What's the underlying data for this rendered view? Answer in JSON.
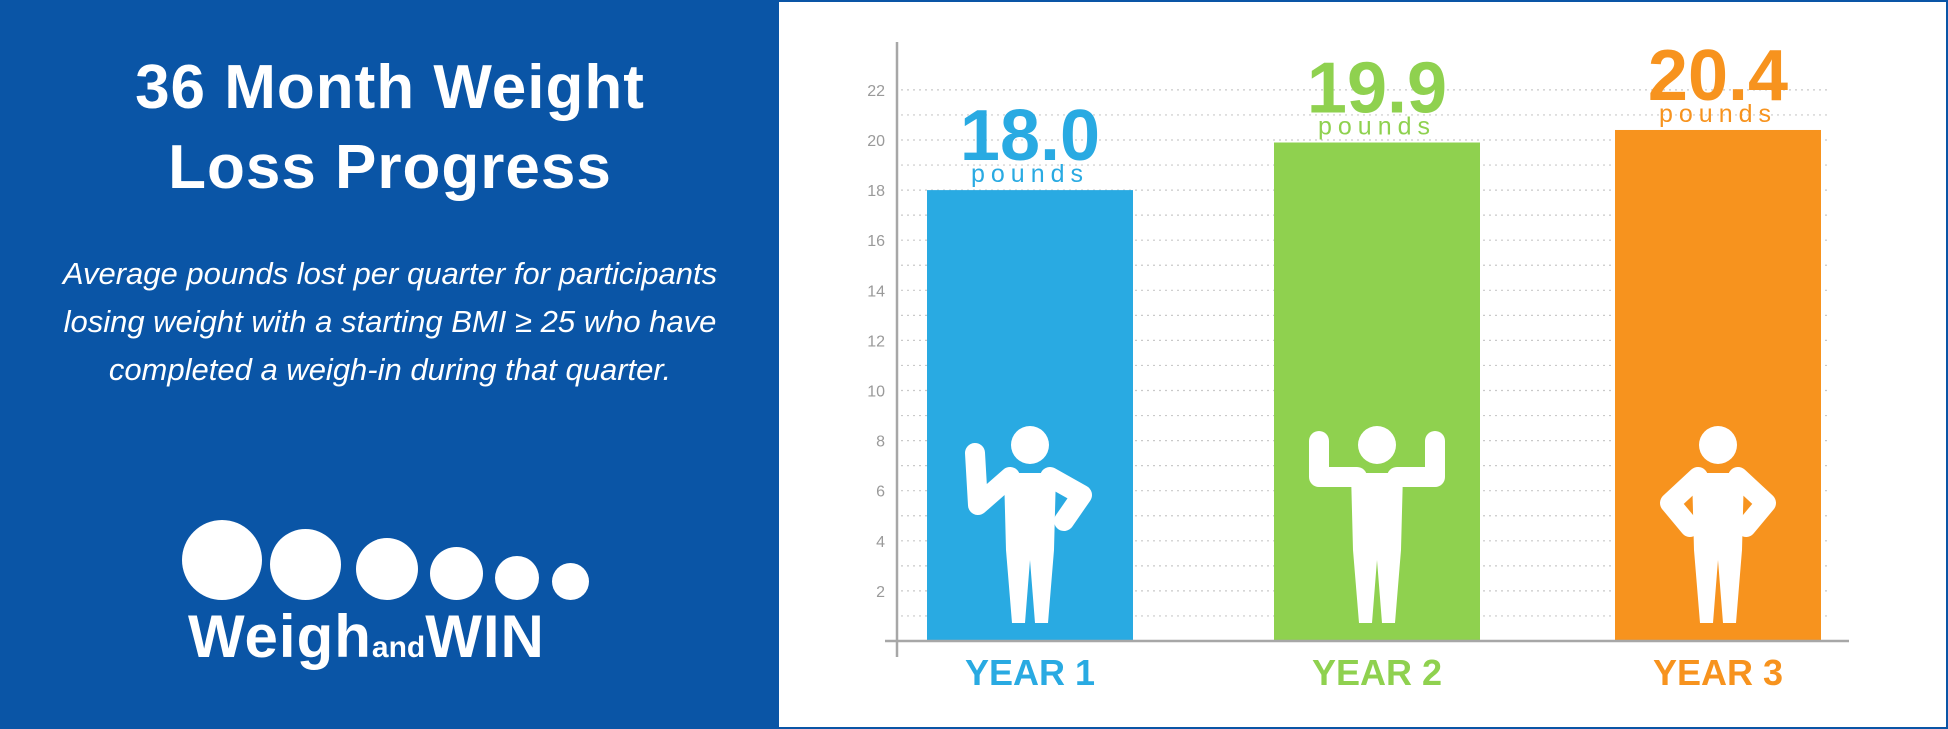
{
  "header": {
    "title_line1": "36 Month Weight",
    "title_line2": "Loss Progress",
    "subtitle": "Average pounds lost per quarter for participants losing weight with a starting BMI ≥ 25 who have completed a weigh-in during that quarter."
  },
  "logo": {
    "text_weigh": "Weigh",
    "text_and": "and",
    "text_win": "WIN"
  },
  "chart_data": {
    "type": "bar",
    "categories": [
      "YEAR 1",
      "YEAR 2",
      "YEAR 3"
    ],
    "values": [
      18.0,
      19.9,
      20.4
    ],
    "value_labels": [
      "18.0",
      "19.9",
      "20.4"
    ],
    "unit_label": "pounds",
    "yticks": [
      2,
      4,
      6,
      8,
      10,
      12,
      14,
      16,
      18,
      20,
      22
    ],
    "ylim": [
      0,
      23
    ],
    "grid": true,
    "colors": [
      "#29aae2",
      "#8fd14f",
      "#f7931e"
    ],
    "icons": [
      "waving-person-icon",
      "flexing-person-icon",
      "hands-on-hips-person-icon"
    ]
  }
}
